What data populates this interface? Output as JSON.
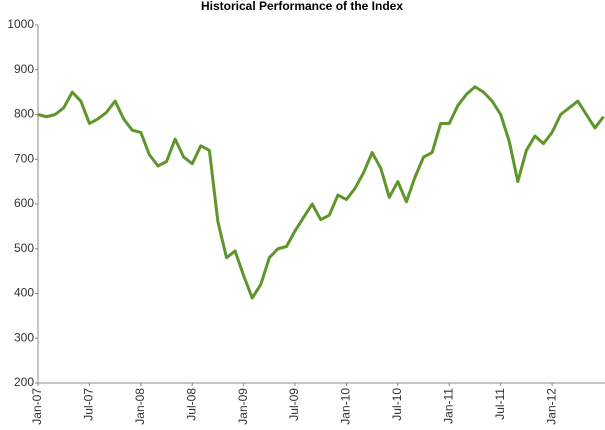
{
  "chart_data": {
    "type": "line",
    "title": "Historical Performance of the Index",
    "categories": [
      "Jan-07",
      null,
      null,
      null,
      null,
      null,
      "Jul-07",
      null,
      null,
      null,
      null,
      null,
      "Jan-08",
      null,
      null,
      null,
      null,
      null,
      "Jul-08",
      null,
      null,
      null,
      null,
      null,
      "Jan-09",
      null,
      null,
      null,
      null,
      null,
      "Jul-09",
      null,
      null,
      null,
      null,
      null,
      "Jan-10",
      null,
      null,
      null,
      null,
      null,
      "Jul-10",
      null,
      null,
      null,
      null,
      null,
      "Jan-11",
      null,
      null,
      null,
      null,
      null,
      "Jul-11",
      null,
      null,
      null,
      null,
      null,
      "Jan-12",
      null,
      null,
      null,
      null,
      null,
      null
    ],
    "values": [
      800,
      795,
      800,
      815,
      850,
      830,
      780,
      790,
      805,
      830,
      790,
      765,
      760,
      710,
      685,
      695,
      745,
      705,
      690,
      730,
      720,
      560,
      480,
      495,
      440,
      390,
      420,
      480,
      500,
      505,
      540,
      570,
      600,
      565,
      575,
      620,
      610,
      635,
      670,
      715,
      680,
      615,
      650,
      605,
      660,
      705,
      715,
      780,
      780,
      820,
      845,
      862,
      850,
      830,
      800,
      740,
      650,
      720,
      752,
      735,
      760,
      800,
      815,
      830,
      800,
      770,
      795
    ],
    "color": "#5f962b",
    "ylim": [
      200,
      1000
    ],
    "yticks": [
      200,
      300,
      400,
      500,
      600,
      700,
      800,
      900,
      1000
    ],
    "grid": false
  }
}
